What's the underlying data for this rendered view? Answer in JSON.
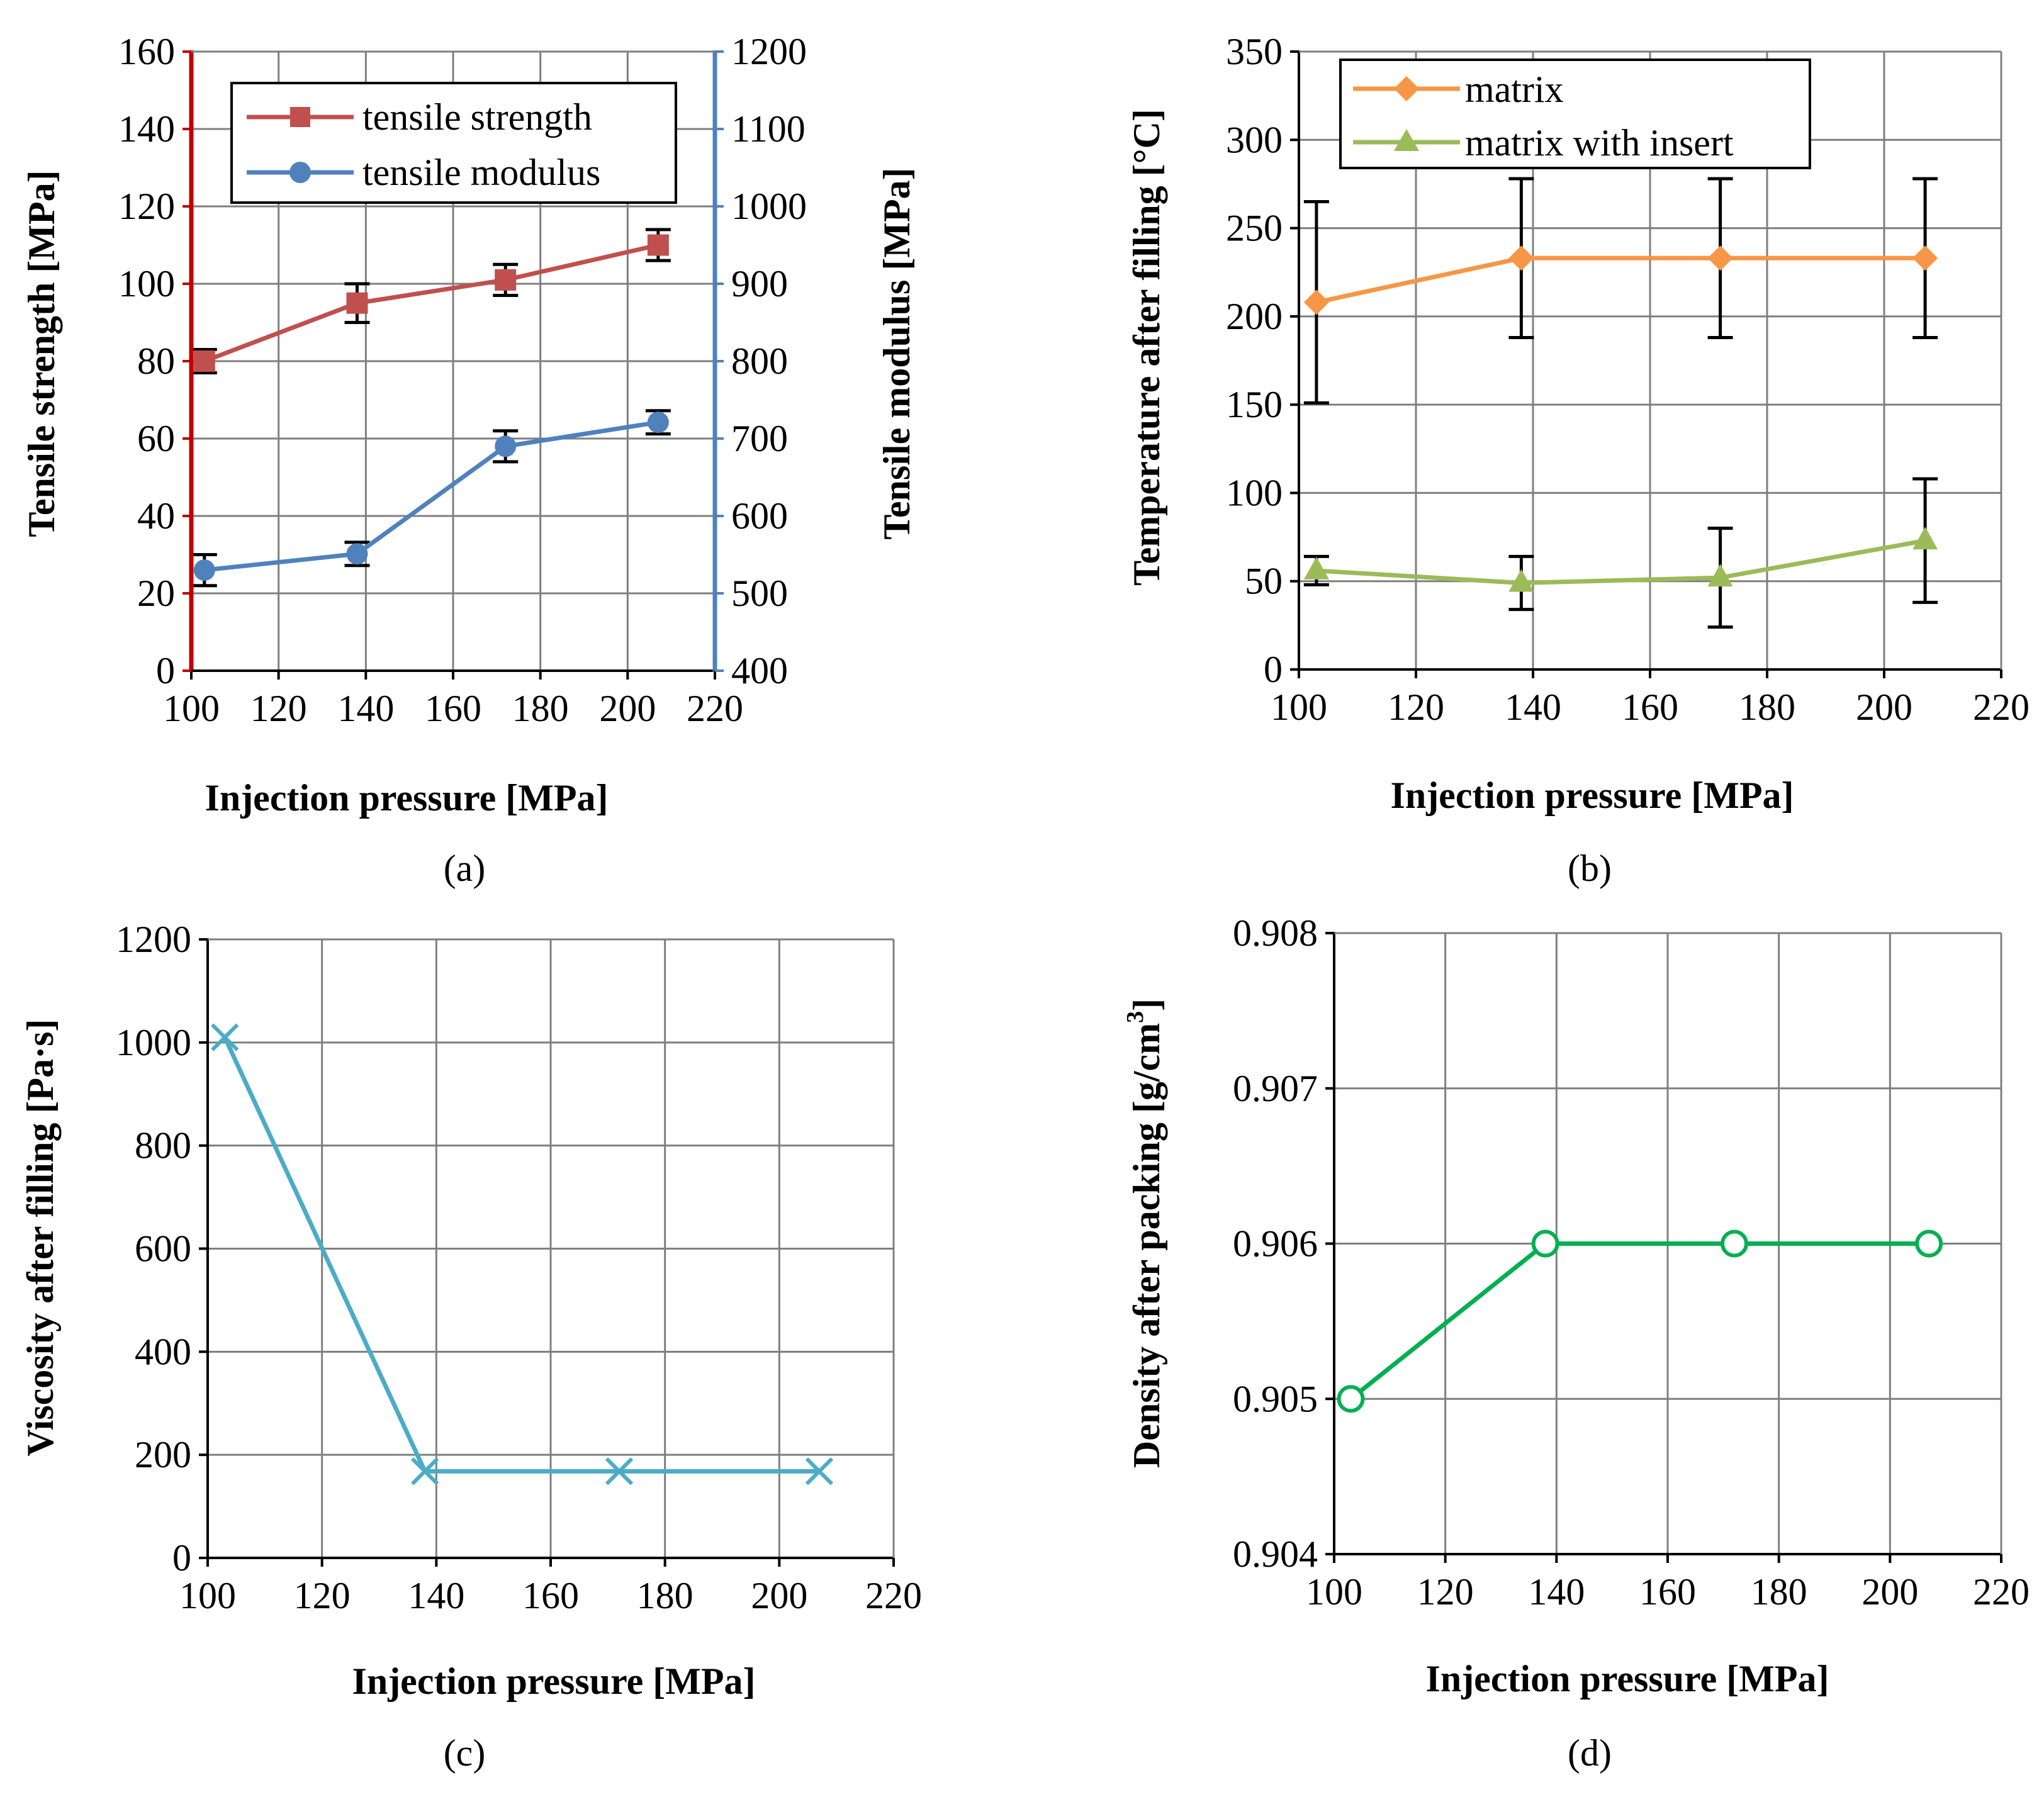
{
  "figure": {
    "panel_labels": [
      "(a)",
      "(b)",
      "(c)",
      "(d)"
    ]
  },
  "colors": {
    "tensile_strength": "#c0504d",
    "tensile_modulus": "#4f81bd",
    "left_axis_a": "#c00000",
    "right_axis_a": "#4f81bd",
    "matrix": "#f79646",
    "matrix_insert": "#9bbb59",
    "viscosity": "#4bacc6",
    "density": "#00b050",
    "grid": "#7f7f7f",
    "errorbar": "#000000"
  },
  "chart_data": [
    {
      "id": "a",
      "type": "line",
      "xlabel": "Injection pressure [MPa]",
      "ylabel": "Tensile strength [MPa]",
      "y2label": "Tensile modulus [MPa]",
      "xlim": [
        100,
        220
      ],
      "xticks": [
        100,
        120,
        140,
        160,
        180,
        200,
        220
      ],
      "ylim": [
        0,
        160
      ],
      "yticks": [
        0,
        20,
        40,
        60,
        80,
        100,
        120,
        140,
        160
      ],
      "y2lim": [
        400,
        1200
      ],
      "y2ticks": [
        400,
        500,
        600,
        700,
        800,
        900,
        1000,
        1100,
        1200
      ],
      "grid": true,
      "legend": "top-left",
      "series": [
        {
          "name": "tensile strength",
          "axis": "left",
          "marker": "square",
          "x": [
            103,
            138,
            172,
            207
          ],
          "y": [
            80,
            95,
            101,
            110
          ],
          "err": [
            3,
            5,
            4,
            4
          ]
        },
        {
          "name": "tensile modulus",
          "axis": "right",
          "marker": "circle",
          "x": [
            103,
            138,
            172,
            207
          ],
          "y": [
            530,
            551,
            690,
            721
          ],
          "err": [
            20,
            15,
            20,
            15
          ]
        }
      ]
    },
    {
      "id": "b",
      "type": "line",
      "xlabel": "Injection pressure [MPa]",
      "ylabel": "Temperature after filling [°C]",
      "xlim": [
        100,
        220
      ],
      "xticks": [
        100,
        120,
        140,
        160,
        180,
        200,
        220
      ],
      "ylim": [
        0,
        350
      ],
      "yticks": [
        0,
        50,
        100,
        150,
        200,
        250,
        300,
        350
      ],
      "grid": true,
      "legend": "top-left",
      "series": [
        {
          "name": "matrix",
          "marker": "diamond",
          "x": [
            103,
            138,
            172,
            207
          ],
          "y": [
            208,
            233,
            233,
            233
          ],
          "err_low": [
            57,
            45,
            45,
            45
          ],
          "err_high": [
            57,
            45,
            45,
            45
          ]
        },
        {
          "name": "matrix with insert",
          "marker": "triangle",
          "x": [
            103,
            138,
            172,
            207
          ],
          "y": [
            56,
            49,
            52,
            73
          ],
          "err_low": [
            8,
            15,
            28,
            35
          ],
          "err_high": [
            8,
            15,
            28,
            35
          ]
        }
      ]
    },
    {
      "id": "c",
      "type": "line",
      "xlabel": "Injection pressure [MPa]",
      "ylabel": "Viscosity after filling [Pa·s]",
      "xlim": [
        100,
        220
      ],
      "xticks": [
        100,
        120,
        140,
        160,
        180,
        200,
        220
      ],
      "ylim": [
        0,
        1200
      ],
      "yticks": [
        0,
        200,
        400,
        600,
        800,
        1000,
        1200
      ],
      "grid": true,
      "series": [
        {
          "name": "viscosity",
          "marker": "x",
          "x": [
            103,
            138,
            172,
            207
          ],
          "y": [
            1010,
            168,
            168,
            168
          ]
        }
      ]
    },
    {
      "id": "d",
      "type": "line",
      "xlabel": "Injection pressure [MPa]",
      "ylabel": "Density after packing [g/cm",
      "ylabel_sup": "3",
      "ylabel_end": "]",
      "xlim": [
        100,
        220
      ],
      "xticks": [
        100,
        120,
        140,
        160,
        180,
        200,
        220
      ],
      "ylim": [
        0.904,
        0.908
      ],
      "yticks": [
        0.904,
        0.905,
        0.906,
        0.907,
        0.908
      ],
      "ytick_labels": [
        "0.904",
        "0.905",
        "0.906",
        "0.907",
        "0.908"
      ],
      "grid": true,
      "series": [
        {
          "name": "density",
          "marker": "open-circle",
          "x": [
            103,
            138,
            172,
            207
          ],
          "y": [
            0.905,
            0.906,
            0.906,
            0.906
          ]
        }
      ]
    }
  ]
}
